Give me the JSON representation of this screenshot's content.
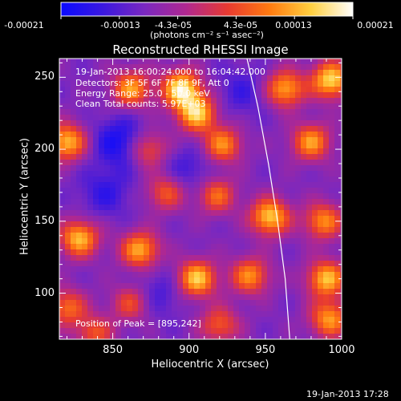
{
  "colorbar": {
    "tick_labels": [
      "-0.00021",
      "-0.00013",
      "-4.3e-05",
      "4.3e-05",
      "0.00013",
      "0.00021"
    ],
    "units_line": "(photons cm⁻² s⁻¹ asec⁻²)",
    "colormap": [
      "#0a0aff",
      "#3a18e0",
      "#7a28c0",
      "#b02890",
      "#e83a30",
      "#ff7a10",
      "#ffd040",
      "#ffffff"
    ]
  },
  "chart_data": {
    "type": "heatmap",
    "title": "Reconstructed RHESSI Image",
    "xlabel": "Heliocentric X (arcsec)",
    "ylabel": "Heliocentric Y (arcsec)",
    "xlim": [
      815,
      1000
    ],
    "ylim": [
      68,
      263
    ],
    "xticks": [
      850,
      900,
      950,
      1000
    ],
    "yticks": [
      100,
      150,
      200,
      250
    ],
    "x_tick_labels": [
      "850",
      "900",
      "950",
      "1000"
    ],
    "y_tick_labels": [
      "100",
      "150",
      "200",
      "250"
    ],
    "annotations": [
      "19-Jan-2013 16:00:24.000 to 16:04:42.000",
      "Detectors: 3F 5F 6F 7F 8F 9F, Att 0",
      "Energy Range: 25.0 - 50.0 keV",
      "Clean     Total counts: 5.97E+03",
      "Position of Peak = [895,242]"
    ],
    "limb_curve": [
      [
        938,
        263
      ],
      [
        945,
        230
      ],
      [
        952,
        190
      ],
      [
        958,
        150
      ],
      [
        963,
        110
      ],
      [
        966,
        68
      ]
    ],
    "blobs": [
      {
        "x": 862,
        "y": 242,
        "v": 0.75
      },
      {
        "x": 895,
        "y": 242,
        "v": 1.0
      },
      {
        "x": 905,
        "y": 225,
        "v": 0.9
      },
      {
        "x": 820,
        "y": 205,
        "v": 0.85
      },
      {
        "x": 922,
        "y": 203,
        "v": 0.7
      },
      {
        "x": 963,
        "y": 242,
        "v": 0.8
      },
      {
        "x": 993,
        "y": 248,
        "v": 0.95
      },
      {
        "x": 980,
        "y": 205,
        "v": 0.75
      },
      {
        "x": 873,
        "y": 200,
        "v": 0.55
      },
      {
        "x": 918,
        "y": 168,
        "v": 0.6
      },
      {
        "x": 885,
        "y": 170,
        "v": 0.55
      },
      {
        "x": 953,
        "y": 153,
        "v": 0.9
      },
      {
        "x": 988,
        "y": 150,
        "v": 0.7
      },
      {
        "x": 828,
        "y": 138,
        "v": 0.85
      },
      {
        "x": 868,
        "y": 130,
        "v": 0.8
      },
      {
        "x": 905,
        "y": 110,
        "v": 0.9
      },
      {
        "x": 940,
        "y": 112,
        "v": 0.7
      },
      {
        "x": 990,
        "y": 110,
        "v": 0.85
      },
      {
        "x": 820,
        "y": 90,
        "v": 0.6
      },
      {
        "x": 862,
        "y": 93,
        "v": 0.5
      },
      {
        "x": 920,
        "y": 78,
        "v": 0.55
      },
      {
        "x": 992,
        "y": 82,
        "v": 0.75
      },
      {
        "x": 838,
        "y": 72,
        "v": 0.5
      }
    ],
    "troughs": [
      {
        "x": 855,
        "y": 205,
        "v": 0.95
      },
      {
        "x": 845,
        "y": 170,
        "v": 0.6
      },
      {
        "x": 900,
        "y": 185,
        "v": 0.55
      },
      {
        "x": 880,
        "y": 100,
        "v": 0.5
      },
      {
        "x": 935,
        "y": 240,
        "v": 0.5
      }
    ]
  },
  "footer": {
    "timestamp": "19-Jan-2013 17:28"
  }
}
